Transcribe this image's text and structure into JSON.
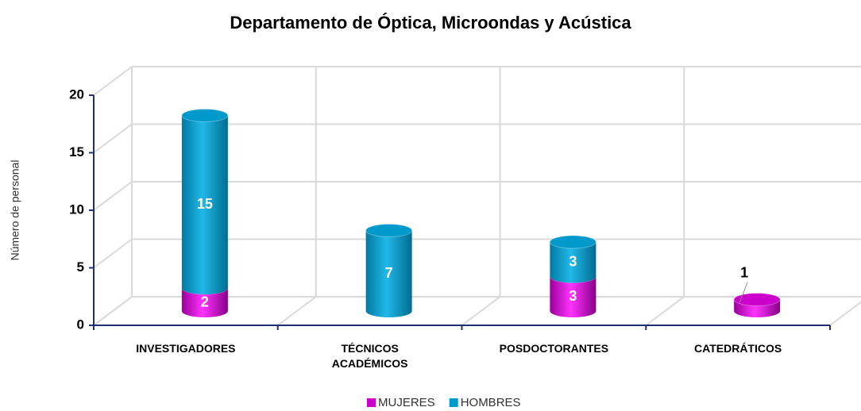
{
  "chart_data": {
    "type": "bar3d",
    "title": "Departamento de Óptica, Microondas y Acústica",
    "y_axis_label": "Número de personal",
    "categories": [
      "INVESTIGADORES",
      "TÉCNICOS ACADÉMICOS",
      "POSDOCTORANTES",
      "CATEDRÁTICOS"
    ],
    "series": [
      {
        "name": "MUJERES",
        "color": "#cc00cc",
        "values": [
          2,
          null,
          3,
          1
        ]
      },
      {
        "name": "HOMBRES",
        "color": "#0099cc",
        "values": [
          15,
          7,
          3,
          null
        ]
      }
    ],
    "stacked": true,
    "ylim": [
      0,
      20
    ],
    "yticks": [
      0,
      5,
      10,
      15,
      20
    ],
    "grid": true,
    "legend": "bottom"
  }
}
